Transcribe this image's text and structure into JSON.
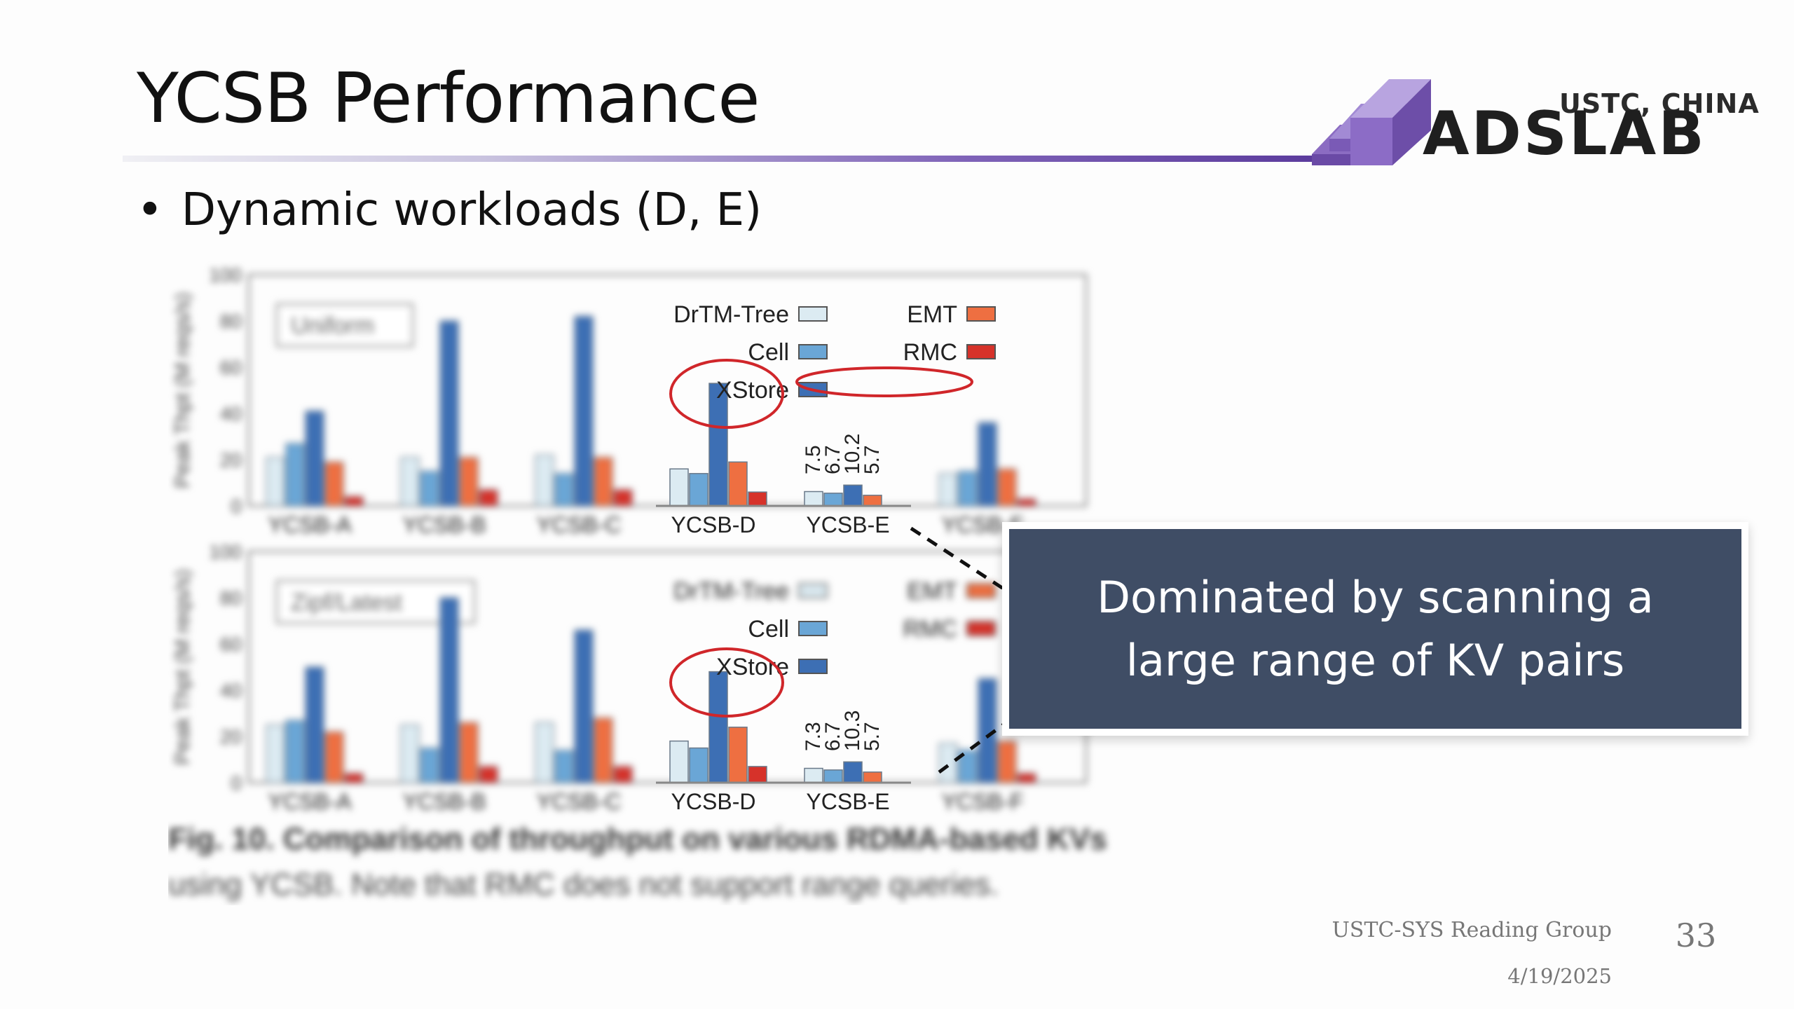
{
  "slide": {
    "title": "YCSB Performance",
    "bullet": "Dynamic workloads (D, E)",
    "callout": "Dominated by scanning a large range of KV pairs",
    "footer_group": "USTC-SYS Reading Group",
    "footer_date": "4/19/2025",
    "page_number": "33"
  },
  "logo": {
    "subtitle": "USTC, CHINA",
    "name": "ADSLAB"
  },
  "chart_data": [
    {
      "type": "bar",
      "panel_label": "Uniform",
      "ylabel": "Peak Thpt (M reqs/s)",
      "ylim": [
        0,
        100
      ],
      "yticks": [
        "0",
        "20",
        "40",
        "60",
        "80",
        "100"
      ],
      "categories": [
        "YCSB-A",
        "YCSB-B",
        "YCSB-C",
        "YCSB-D",
        "YCSB-E",
        "YCSB-F"
      ],
      "series": [
        {
          "name": "DrTM-Tree",
          "color": "#dcebf2",
          "values": [
            21,
            21,
            22,
            16,
            6.2,
            14
          ]
        },
        {
          "name": "Cell",
          "color": "#6aa6d6",
          "values": [
            27,
            15,
            14,
            14,
            5.5,
            15
          ]
        },
        {
          "name": "XStore",
          "color": "#3d6fb4",
          "values": [
            41,
            80,
            82,
            53,
            9,
            36
          ]
        },
        {
          "name": "EMT",
          "color": "#ee6f41",
          "values": [
            19,
            21,
            21,
            19,
            4.6,
            16
          ]
        },
        {
          "name": "RMC",
          "color": "#d6322a",
          "values": [
            4,
            7,
            7,
            6,
            0,
            3
          ]
        }
      ],
      "annotations": [
        "7.5",
        "6.7",
        "10.2",
        "5.7"
      ],
      "legend_position": "top-right"
    },
    {
      "type": "bar",
      "panel_label": "Zipf/Latest",
      "ylabel": "Peak Thpt (M reqs/s)",
      "ylim": [
        0,
        100
      ],
      "yticks": [
        "0",
        "20",
        "40",
        "60",
        "80",
        "100"
      ],
      "categories": [
        "YCSB-A",
        "YCSB-B",
        "YCSB-C",
        "YCSB-D",
        "YCSB-E",
        "YCSB-F"
      ],
      "series": [
        {
          "name": "DrTM-Tree",
          "color": "#dcebf2",
          "values": [
            25,
            25,
            26,
            18,
            6.2,
            17
          ]
        },
        {
          "name": "Cell",
          "color": "#6aa6d6",
          "values": [
            27,
            15,
            14,
            15,
            5.5,
            14
          ]
        },
        {
          "name": "XStore",
          "color": "#3d6fb4",
          "values": [
            50,
            80,
            66,
            48,
            9,
            45
          ]
        },
        {
          "name": "EMT",
          "color": "#ee6f41",
          "values": [
            22,
            26,
            28,
            24,
            4.6,
            18
          ]
        },
        {
          "name": "RMC",
          "color": "#d6322a",
          "values": [
            4,
            7,
            7,
            7,
            0,
            4
          ]
        }
      ],
      "annotations": [
        "7.3",
        "6.7",
        "10.3",
        "5.7"
      ],
      "legend_position": "top-right"
    }
  ],
  "caption": {
    "label": "Fig. 10.",
    "text": "Comparison of throughput on various RDMA-based KVs using YCSB. Note that RMC does not support range queries."
  },
  "colors": {
    "callout_bg": "#3f4d65",
    "highlight_circle": "#d0262a",
    "rule_accent": "#5a3a9c"
  }
}
